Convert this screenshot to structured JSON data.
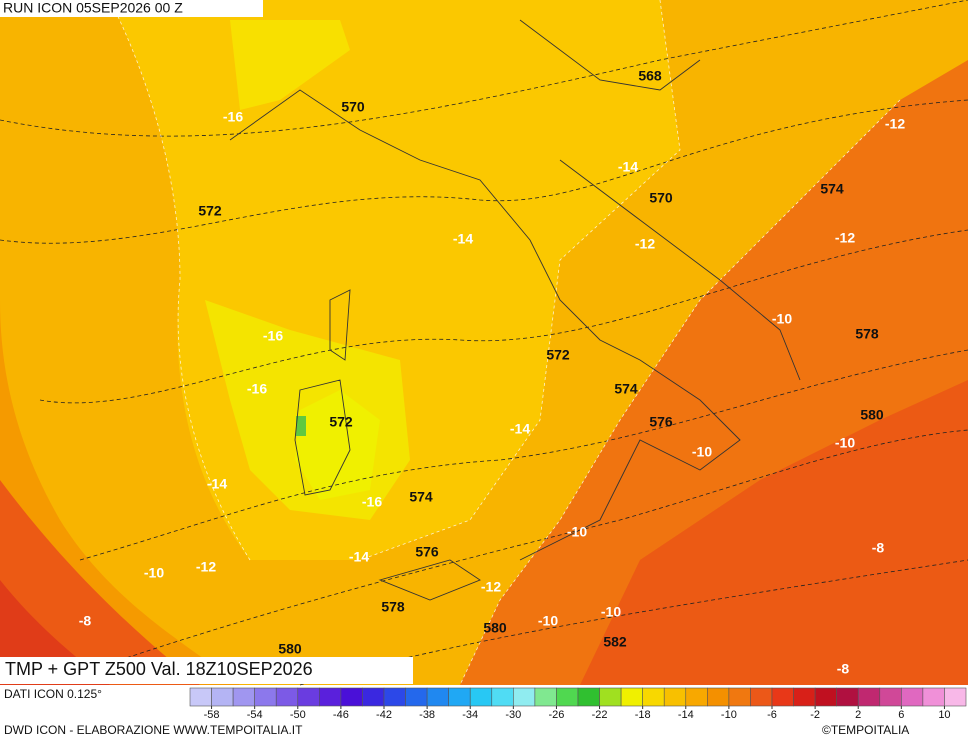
{
  "header": {
    "run": "RUN ICON 05SEP2026 00 Z",
    "title": "TMP + GPT Z500 Val. 18Z10SEP2026"
  },
  "map": {
    "labels": [
      -16,
      570,
      568,
      -12,
      -14,
      570,
      574,
      572,
      -14,
      -12,
      -12,
      -10,
      578,
      -16,
      572,
      -16,
      574,
      580,
      572,
      576,
      -14,
      -10,
      -10,
      -14,
      574,
      -16,
      -10,
      -8,
      576,
      -14,
      -10,
      -12,
      -12,
      578,
      -10,
      -8,
      -10,
      580,
      582,
      580,
      -8
    ]
  },
  "colorbar": {
    "lim": [
      -60,
      12
    ],
    "ticks": [
      -58,
      -54,
      -50,
      -46,
      -42,
      -38,
      -34,
      -30,
      -26,
      -22,
      -18,
      -14,
      -10,
      -6,
      -2,
      2,
      6,
      10
    ],
    "colors": [
      "#c8c8f8",
      "#b4b4f4",
      "#a096f0",
      "#8c78ec",
      "#7c5ae6",
      "#6a3ce0",
      "#5a20dc",
      "#4a10d8",
      "#3a28e0",
      "#2c48e8",
      "#2468ec",
      "#2088f0",
      "#20a8f4",
      "#28c8f4",
      "#50dcf4",
      "#90ecf0",
      "#80e890",
      "#50d850",
      "#30c030",
      "#a0e020",
      "#f0f000",
      "#f8d800",
      "#f8c000",
      "#f8a800",
      "#f49000",
      "#f07810",
      "#ec5818",
      "#e83818",
      "#d82018",
      "#c01020",
      "#b01040",
      "#c02870",
      "#d04898",
      "#e068c0",
      "#f090d8",
      "#f8b8e8"
    ]
  },
  "footer": {
    "data_source": "DATI ICON 0.125°",
    "credit": "DWD ICON - ELABORAZIONE WWW.TEMPOITALIA.IT",
    "copyright": "©TEMPOITALIA"
  }
}
